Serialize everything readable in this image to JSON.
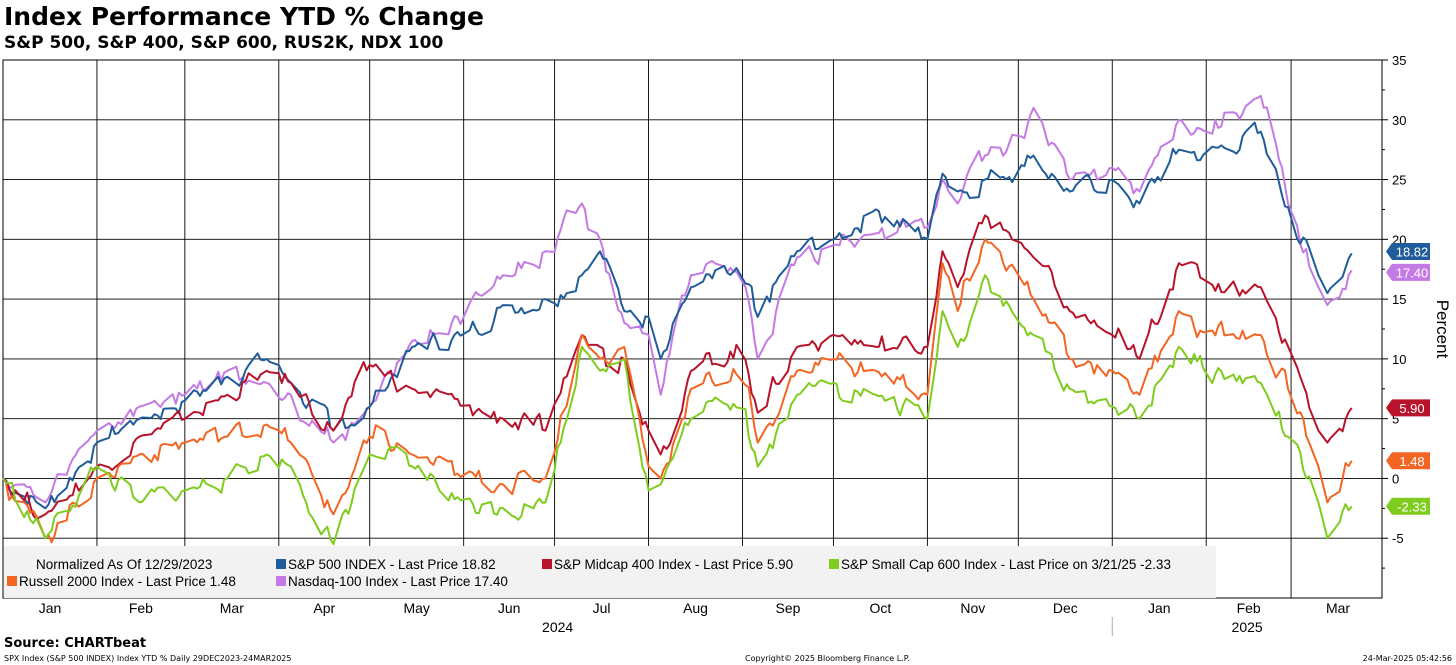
{
  "header": {
    "title": "Index Performance YTD % Change",
    "subtitle": "S&P 500, S&P 400, S&P 600, RUS2K, NDX 100"
  },
  "footer": {
    "source": "Source: CHARTbeat",
    "left": "SPX Index (S&P 500 INDEX) Index YTD %  Daily 29DEC2023-24MAR2025",
    "center": "Copyright© 2025 Bloomberg Finance L.P.",
    "right": "24-Mar-2025 05:42:56"
  },
  "chart_data": {
    "type": "line",
    "ylabel": "Percent",
    "ylim": [
      -10,
      35
    ],
    "yticks": [
      -5,
      0,
      5,
      10,
      15,
      20,
      25,
      30,
      35
    ],
    "grid": true,
    "legend_position": "bottom-left",
    "legend_note": "Normalized As Of 12/29/2023",
    "x_tick_labels": [
      "Jan",
      "Feb",
      "Mar",
      "Apr",
      "May",
      "Jun",
      "Jul",
      "Aug",
      "Sep",
      "Oct",
      "Nov",
      "Dec",
      "Jan",
      "Feb",
      "Mar"
    ],
    "year_labels": [
      "2024",
      "2025"
    ],
    "x": [
      "2024-01-01",
      "2024-01-15",
      "2024-02-01",
      "2024-02-15",
      "2024-03-01",
      "2024-03-15",
      "2024-03-28",
      "2024-04-05",
      "2024-04-19",
      "2024-05-01",
      "2024-05-15",
      "2024-06-01",
      "2024-06-14",
      "2024-06-28",
      "2024-07-10",
      "2024-07-16",
      "2024-07-24",
      "2024-08-01",
      "2024-08-05",
      "2024-08-15",
      "2024-09-01",
      "2024-09-06",
      "2024-09-19",
      "2024-10-01",
      "2024-10-15",
      "2024-11-01",
      "2024-11-06",
      "2024-11-11",
      "2024-11-20",
      "2024-12-01",
      "2024-12-06",
      "2024-12-18",
      "2025-01-01",
      "2025-01-10",
      "2025-01-23",
      "2025-02-01",
      "2025-02-19",
      "2025-03-01",
      "2025-03-10",
      "2025-03-13",
      "2025-03-21"
    ],
    "series": [
      {
        "name": "S&P 500 INDEX - Last Price",
        "legend_value": "18.82",
        "last_value": "18.82",
        "color": "#1f5c99",
        "values": [
          0,
          -2.5,
          3,
          5,
          6.5,
          8.5,
          10,
          8,
          4,
          6,
          11,
          12,
          14.5,
          15,
          17,
          19,
          14,
          13.5,
          10,
          16,
          17,
          13.5,
          19,
          20,
          22.5,
          20,
          25.5,
          24,
          25,
          26,
          27,
          24,
          25,
          23,
          27.5,
          27,
          29,
          22,
          17,
          15.5,
          18.82
        ]
      },
      {
        "name": "S&P Midcap 400 Index - Last Price",
        "legend_value": "5.90",
        "last_value": "5.90",
        "color": "#b8132b",
        "values": [
          0,
          -3,
          1,
          3.5,
          5,
          7,
          9,
          8,
          4,
          9.5,
          7.5,
          6,
          5,
          4,
          12,
          11,
          10,
          4,
          2,
          9,
          11,
          5.5,
          11,
          12,
          11,
          11,
          19,
          16,
          22,
          20,
          18.5,
          14,
          12,
          10,
          18,
          16.5,
          16,
          10.5,
          4,
          3,
          5.9
        ]
      },
      {
        "name": "S&P Small Cap 600 Index - Last Price on 3/21/25",
        "legend_value": "-2.33",
        "last_value": "-2.33",
        "color": "#7fcc1f",
        "values": [
          0,
          -5,
          1,
          -2,
          -1,
          0,
          2,
          1,
          -5.5,
          2,
          1,
          -2,
          -2.5,
          -2,
          11,
          9,
          10,
          -1,
          -0.5,
          5,
          7,
          1,
          7,
          8,
          7,
          5,
          14,
          11,
          17,
          13,
          12,
          7.5,
          6,
          5,
          11,
          9,
          8,
          3,
          -2,
          -5,
          -2.33
        ]
      },
      {
        "name": "Russell 2000 Index - Last Price",
        "legend_value": "1.48",
        "last_value": "1.48",
        "color": "#f26522",
        "values": [
          0,
          -5,
          0,
          2,
          3,
          3.5,
          4.5,
          3,
          -3,
          3.5,
          2,
          0,
          -0.5,
          0,
          12,
          10,
          11,
          1,
          0,
          7.5,
          9,
          3,
          9,
          10,
          9,
          7,
          18,
          14,
          20,
          17,
          15,
          10,
          9,
          7,
          14,
          12,
          12,
          7,
          1,
          -2,
          1.48
        ]
      },
      {
        "name": "Nasdaq-100 Index - Last Price",
        "legend_value": "17.40",
        "last_value": "17.40",
        "color": "#c47ae5",
        "values": [
          0,
          -2,
          4,
          6,
          7,
          9,
          8,
          7,
          3,
          6,
          11.5,
          13,
          17,
          19,
          23,
          20,
          13,
          12,
          7,
          17,
          17.5,
          10,
          18.5,
          19.5,
          20.5,
          21,
          25,
          23,
          27,
          28,
          31,
          25,
          26,
          24,
          30,
          29,
          32,
          22,
          16,
          14.5,
          17.4
        ]
      }
    ]
  }
}
